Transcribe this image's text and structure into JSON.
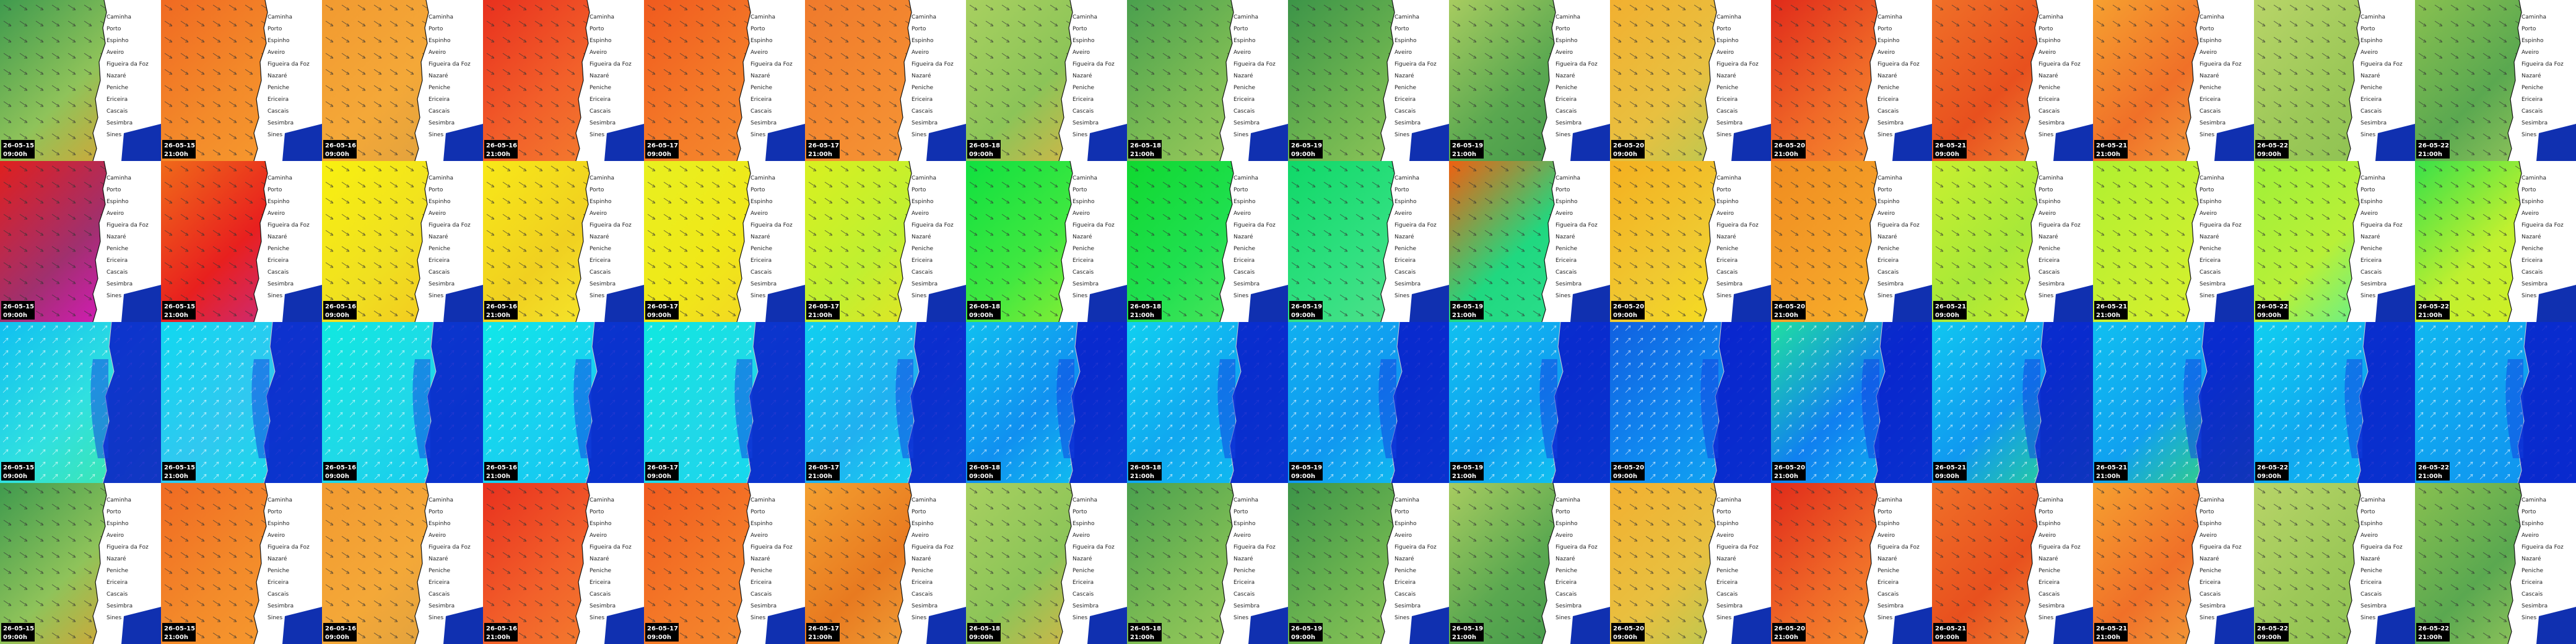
{
  "columns": [
    {
      "date": "26-05-15",
      "time": "09:00h"
    },
    {
      "date": "26-05-15",
      "time": "21:00h"
    },
    {
      "date": "26-05-16",
      "time": "09:00h"
    },
    {
      "date": "26-05-16",
      "time": "21:00h"
    },
    {
      "date": "26-05-17",
      "time": "09:00h"
    },
    {
      "date": "26-05-17",
      "time": "21:00h"
    },
    {
      "date": "26-05-18",
      "time": "09:00h"
    },
    {
      "date": "26-05-18",
      "time": "21:00h"
    },
    {
      "date": "26-05-19",
      "time": "09:00h"
    },
    {
      "date": "26-05-19",
      "time": "21:00h"
    },
    {
      "date": "26-05-20",
      "time": "09:00h"
    },
    {
      "date": "26-05-20",
      "time": "21:00h"
    },
    {
      "date": "26-05-21",
      "time": "09:00h"
    },
    {
      "date": "26-05-21",
      "time": "21:00h"
    },
    {
      "date": "26-05-22",
      "time": "09:00h"
    },
    {
      "date": "26-05-22",
      "time": "21:00h"
    }
  ],
  "places": [
    "Caminha",
    "Porto",
    "Espinho",
    "Aveiro",
    "Figueira da Foz",
    "Nazaré",
    "Peniche",
    "Ericeira",
    "Cascais",
    "Sesimbra",
    "Sines"
  ]
}
